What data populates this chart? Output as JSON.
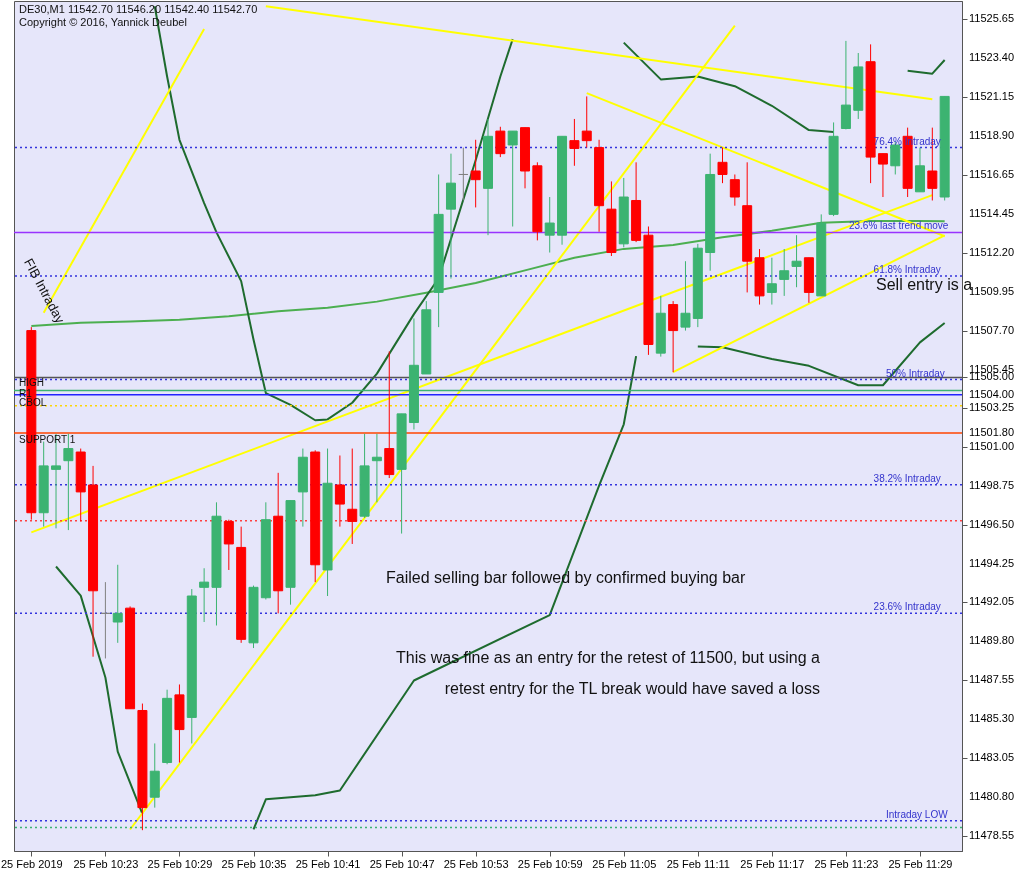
{
  "chart_data": {
    "type": "candlestick",
    "title": "DE30,M1  11542.70 11546.20 11542.40 11542.70",
    "xlim": [
      "2019-02-25T10:16",
      "2019-02-25T11:32"
    ],
    "ylim": [
      11477.7,
      11526.7
    ],
    "xticks": [
      {
        "value": "2019-02-25T10:17",
        "label": "25 Feb 2019"
      },
      {
        "value": "2019-02-25T10:23",
        "label": "25 Feb 10:23"
      },
      {
        "value": "2019-02-25T10:29",
        "label": "25 Feb 10:29"
      },
      {
        "value": "2019-02-25T10:35",
        "label": "25 Feb 10:35"
      },
      {
        "value": "2019-02-25T10:41",
        "label": "25 Feb 10:41"
      },
      {
        "value": "2019-02-25T10:47",
        "label": "25 Feb 10:47"
      },
      {
        "value": "2019-02-25T10:53",
        "label": "25 Feb 10:53"
      },
      {
        "value": "2019-02-25T10:59",
        "label": "25 Feb 10:59"
      },
      {
        "value": "2019-02-25T11:05",
        "label": "25 Feb 11:05"
      },
      {
        "value": "2019-02-25T11:11",
        "label": "25 Feb 11:11"
      },
      {
        "value": "2019-02-25T11:17",
        "label": "25 Feb 11:17"
      },
      {
        "value": "2019-02-25T11:23",
        "label": "25 Feb 11:23"
      },
      {
        "value": "2019-02-25T11:29",
        "label": "25 Feb 11:29"
      }
    ],
    "yticks": [
      {
        "value": 11478.55,
        "label": "11478.55"
      },
      {
        "value": 11480.8,
        "label": "11480.80"
      },
      {
        "value": 11483.05,
        "label": "11483.05"
      },
      {
        "value": 11485.3,
        "label": "11485.30"
      },
      {
        "value": 11487.55,
        "label": "11487.55"
      },
      {
        "value": 11489.8,
        "label": "11489.80"
      },
      {
        "value": 11492.05,
        "label": "11492.05"
      },
      {
        "value": 11494.25,
        "label": "11494.25"
      },
      {
        "value": 11496.5,
        "label": "11496.50"
      },
      {
        "value": 11498.75,
        "label": "11498.75"
      },
      {
        "value": 11501,
        "label": "11501.00"
      },
      {
        "value": 11501.8,
        "label": "11501.80"
      },
      {
        "value": 11503.25,
        "label": "11503.25"
      },
      {
        "value": 11504,
        "label": "11504.00"
      },
      {
        "value": 11505,
        "label": "11505.00"
      },
      {
        "value": 11505.45,
        "label": "11505.45"
      },
      {
        "value": 11507.7,
        "label": "11507.70"
      },
      {
        "value": 11509.95,
        "label": "11509.95"
      },
      {
        "value": 11512.2,
        "label": "11512.20"
      },
      {
        "value": 11514.45,
        "label": "11514.45"
      },
      {
        "value": 11516.65,
        "label": "11516.65"
      },
      {
        "value": 11518.9,
        "label": "11518.90"
      },
      {
        "value": 11521.15,
        "label": "11521.15"
      },
      {
        "value": 11523.4,
        "label": "11523.40"
      },
      {
        "value": 11525.65,
        "label": "11525.65"
      }
    ],
    "series": [
      {
        "x": [
          "2019-02-25T10:17",
          "2019-02-25T10:18",
          "2019-02-25T10:19",
          "2019-02-25T10:20",
          "2019-02-25T10:21",
          "2019-02-25T10:22",
          "2019-02-25T10:23",
          "2019-02-25T10:24",
          "2019-02-25T10:25",
          "2019-02-25T10:26",
          "2019-02-25T10:27",
          "2019-02-25T10:28",
          "2019-02-25T10:29",
          "2019-02-25T10:30",
          "2019-02-25T10:31",
          "2019-02-25T10:32",
          "2019-02-25T10:33",
          "2019-02-25T10:34",
          "2019-02-25T10:35",
          "2019-02-25T10:36",
          "2019-02-25T10:37",
          "2019-02-25T10:38",
          "2019-02-25T10:39",
          "2019-02-25T10:40",
          "2019-02-25T10:41",
          "2019-02-25T10:42",
          "2019-02-25T10:43",
          "2019-02-25T10:44",
          "2019-02-25T10:45",
          "2019-02-25T10:46",
          "2019-02-25T10:47",
          "2019-02-25T10:48",
          "2019-02-25T10:49",
          "2019-02-25T10:50",
          "2019-02-25T10:51",
          "2019-02-25T10:52",
          "2019-02-25T10:53",
          "2019-02-25T10:54",
          "2019-02-25T10:55",
          "2019-02-25T10:56",
          "2019-02-25T10:57",
          "2019-02-25T10:58",
          "2019-02-25T10:59",
          "2019-02-25T11:00",
          "2019-02-25T11:01",
          "2019-02-25T11:02",
          "2019-02-25T11:03",
          "2019-02-25T11:04",
          "2019-02-25T11:05",
          "2019-02-25T11:06",
          "2019-02-25T11:07",
          "2019-02-25T11:08",
          "2019-02-25T11:09",
          "2019-02-25T11:10",
          "2019-02-25T11:11",
          "2019-02-25T11:12",
          "2019-02-25T11:13",
          "2019-02-25T11:14",
          "2019-02-25T11:15",
          "2019-02-25T11:16",
          "2019-02-25T11:17",
          "2019-02-25T11:18",
          "2019-02-25T11:19",
          "2019-02-25T11:20",
          "2019-02-25T11:21",
          "2019-02-25T11:22",
          "2019-02-25T11:23",
          "2019-02-25T11:24",
          "2019-02-25T11:25",
          "2019-02-25T11:26",
          "2019-02-25T11:27",
          "2019-02-25T11:28",
          "2019-02-25T11:29",
          "2019-02-25T11:30",
          "2019-02-25T11:31"
        ],
        "ohlc": [
          [
            11507.7,
            11507.9,
            11496.8,
            11497.2
          ],
          [
            11497.2,
            11501.3,
            11496.4,
            11499.9
          ],
          [
            11499.7,
            11501.75,
            11496.3,
            11499.9
          ],
          [
            11500.2,
            11501.75,
            11496.2,
            11500.9
          ],
          [
            11500.7,
            11500.9,
            11496.7,
            11498.4
          ],
          [
            11498.8,
            11499.9,
            11488.9,
            11492.7
          ],
          [
            11491.4,
            11493.2,
            11488.8,
            11491.4
          ],
          [
            11490.9,
            11494.2,
            11489.7,
            11491.4
          ],
          [
            11491.7,
            11491.8,
            11485.9,
            11485.9
          ],
          [
            11485.8,
            11486.2,
            11478.9,
            11480.2
          ],
          [
            11480.8,
            11483.9,
            11480.2,
            11482.3
          ],
          [
            11482.8,
            11487.0,
            11482.7,
            11486.5
          ],
          [
            11486.7,
            11487.3,
            11482.8,
            11484.7
          ],
          [
            11485.4,
            11492.8,
            11483.9,
            11492.4
          ],
          [
            11492.9,
            11494.0,
            11490.9,
            11493.2
          ],
          [
            11492.9,
            11497.8,
            11490.7,
            11497.0
          ],
          [
            11496.7,
            11496.8,
            11493.9,
            11495.4
          ],
          [
            11495.2,
            11496.4,
            11489.7,
            11489.9
          ],
          [
            11489.7,
            11493.0,
            11489.4,
            11492.9
          ],
          [
            11492.3,
            11497.8,
            11492.2,
            11496.8
          ],
          [
            11497.0,
            11499.5,
            11491.4,
            11492.7
          ],
          [
            11492.9,
            11497.9,
            11491.9,
            11497.9
          ],
          [
            11498.4,
            11500.9,
            11496.4,
            11500.4
          ],
          [
            11500.7,
            11500.8,
            11493.2,
            11494.2
          ],
          [
            11493.9,
            11500.9,
            11492.4,
            11498.9
          ],
          [
            11498.8,
            11500.5,
            11496.4,
            11497.7
          ],
          [
            11497.4,
            11500.9,
            11495.4,
            11496.7
          ],
          [
            11497.0,
            11501.75,
            11496.9,
            11499.9
          ],
          [
            11500.2,
            11501.75,
            11497.8,
            11500.4
          ],
          [
            11500.9,
            11506.5,
            11499.2,
            11499.4
          ],
          [
            11499.7,
            11502.9,
            11496.0,
            11502.9
          ],
          [
            11502.4,
            11508.4,
            11502.0,
            11505.7
          ],
          [
            11505.2,
            11509.4,
            11505.2,
            11508.9
          ],
          [
            11509.9,
            11516.7,
            11507.9,
            11514.4
          ],
          [
            11514.7,
            11517.9,
            11510.7,
            11516.2
          ],
          [
            11516.7,
            11518.25,
            11515.2,
            11516.7
          ],
          [
            11516.9,
            11518.7,
            11514.8,
            11516.4
          ],
          [
            11515.9,
            11519.9,
            11513.2,
            11518.9
          ],
          [
            11519.2,
            11519.45,
            11517.7,
            11517.9
          ],
          [
            11518.4,
            11519.2,
            11513.7,
            11519.2
          ],
          [
            11519.4,
            11519.4,
            11515.9,
            11516.9
          ],
          [
            11517.2,
            11517.4,
            11512.9,
            11513.4
          ],
          [
            11513.2,
            11515.4,
            11512.2,
            11513.9
          ],
          [
            11513.2,
            11518.9,
            11512.65,
            11518.9
          ],
          [
            11518.65,
            11519.9,
            11517.2,
            11518.2
          ],
          [
            11519.2,
            11521.2,
            11518.25,
            11518.65
          ],
          [
            11518.25,
            11518.7,
            11513.4,
            11514.9
          ],
          [
            11514.7,
            11516.3,
            11512.0,
            11512.2
          ],
          [
            11512.7,
            11516.5,
            11512.5,
            11515.4
          ],
          [
            11515.2,
            11517.4,
            11512.8,
            11512.9
          ],
          [
            11513.2,
            11513.7,
            11506.3,
            11506.9
          ],
          [
            11506.4,
            11509.7,
            11506.2,
            11508.7
          ],
          [
            11509.2,
            11509.4,
            11505.3,
            11507.7
          ],
          [
            11507.9,
            11511.7,
            11507.7,
            11508.7
          ],
          [
            11508.4,
            11512.7,
            11507.9,
            11512.45
          ],
          [
            11512.2,
            11517.9,
            11511.15,
            11516.7
          ],
          [
            11517.4,
            11518.25,
            11516.2,
            11516.7
          ],
          [
            11516.4,
            11516.7,
            11514.9,
            11515.4
          ],
          [
            11514.9,
            11517.4,
            11509.9,
            11511.7
          ],
          [
            11511.9,
            11512.4,
            11509.2,
            11509.7
          ],
          [
            11509.9,
            11511.9,
            11509.2,
            11510.4
          ],
          [
            11510.65,
            11512.4,
            11509.7,
            11511.15
          ],
          [
            11511.4,
            11513.2,
            11510.2,
            11511.7
          ],
          [
            11511.9,
            11511.9,
            11509.3,
            11509.9
          ],
          [
            11509.7,
            11514.4,
            11509.7,
            11513.9
          ],
          [
            11514.4,
            11519.7,
            11514.3,
            11518.9
          ],
          [
            11519.35,
            11524.4,
            11519.3,
            11520.7
          ],
          [
            11520.4,
            11523.7,
            11519.9,
            11522.9
          ],
          [
            11523.2,
            11524.2,
            11516.2,
            11517.7
          ],
          [
            11517.9,
            11517.9,
            11515.4,
            11517.3
          ],
          [
            11517.2,
            11518.6,
            11516.7,
            11518.4
          ],
          [
            11518.9,
            11519.4,
            11515.4,
            11515.9
          ],
          [
            11515.7,
            11518.25,
            11515.7,
            11517.2
          ],
          [
            11516.9,
            11519.4,
            11515.2,
            11515.9
          ],
          [
            11515.4,
            11521.2,
            11515.2,
            11521.2
          ]
        ],
        "colors": [
          "#ff0000",
          "#3cb371",
          "#3cb371",
          "#3cb371",
          "#ff0000",
          "#ff0000",
          "#808080",
          "#3cb371",
          "#ff0000",
          "#ff0000",
          "#3cb371",
          "#3cb371",
          "#ff0000",
          "#3cb371",
          "#3cb371",
          "#3cb371",
          "#ff0000",
          "#ff0000",
          "#3cb371",
          "#3cb371",
          "#ff0000",
          "#3cb371",
          "#3cb371",
          "#ff0000",
          "#3cb371",
          "#ff0000",
          "#ff0000",
          "#3cb371",
          "#3cb371",
          "#ff0000",
          "#3cb371",
          "#3cb371",
          "#3cb371",
          "#3cb371",
          "#3cb371",
          "#808080",
          "#ff0000",
          "#3cb371",
          "#ff0000",
          "#3cb371",
          "#ff0000",
          "#ff0000",
          "#3cb371",
          "#3cb371",
          "#ff0000",
          "#ff0000",
          "#ff0000",
          "#ff0000",
          "#3cb371",
          "#ff0000",
          "#ff0000",
          "#3cb371",
          "#ff0000",
          "#3cb371",
          "#3cb371",
          "#3cb371",
          "#ff0000",
          "#ff0000",
          "#ff0000",
          "#ff0000",
          "#3cb371",
          "#3cb371",
          "#3cb371",
          "#ff0000",
          "#3cb371",
          "#3cb371",
          "#3cb371",
          "#3cb371",
          "#ff0000",
          "#ff0000",
          "#3cb371",
          "#ff0000",
          "#3cb371",
          "#ff0000",
          "#3cb371"
        ]
      },
      {
        "type": "line",
        "color": "#4caf50",
        "x": [
          "2019-02-25T10:17",
          "2019-02-25T10:21",
          "2019-02-25T10:25",
          "2019-02-25T10:29",
          "2019-02-25T10:33",
          "2019-02-25T10:37",
          "2019-02-25T10:41",
          "2019-02-25T10:45",
          "2019-02-25T10:49",
          "2019-02-25T10:53",
          "2019-02-25T10:57",
          "2019-02-25T11:01",
          "2019-02-25T11:05",
          "2019-02-25T11:09",
          "2019-02-25T11:13",
          "2019-02-25T11:17",
          "2019-02-25T11:21",
          "2019-02-25T11:25",
          "2019-02-25T11:29",
          "2019-02-25T11:31"
        ],
        "values": [
          11507.97,
          11508.15,
          11508.22,
          11508.33,
          11508.53,
          11508.81,
          11509.01,
          11509.37,
          11509.88,
          11510.44,
          11511.17,
          11511.9,
          11512.41,
          11512.63,
          11513.08,
          11513.45,
          11513.92,
          11514.02,
          11514.02,
          11514.0
        ]
      },
      {
        "type": "line",
        "color": "#1e6b2e",
        "x": [
          "2019-02-25T10:27",
          "2019-02-25T10:28",
          "2019-02-25T10:29",
          "2019-02-25T10:31",
          "2019-02-25T10:32",
          "2019-02-25T10:34",
          "2019-02-25T10:35",
          "2019-02-25T10:36",
          "2019-02-25T10:38",
          "2019-02-25T10:40",
          "2019-02-25T10:41",
          "2019-02-25T10:43",
          "2019-02-25T10:45",
          "2019-02-25T10:48",
          "2019-02-25T10:50",
          "2019-02-25T10:53",
          "2019-02-25T10:55",
          "2019-02-25T10:56",
          "2019-02-25T11:00",
          "2019-02-25T11:05",
          "2019-02-25T11:08",
          "2019-02-25T11:11",
          "2019-02-25T11:14",
          "2019-02-25T11:17",
          "2019-02-25T11:20",
          "2019-02-25T11:22",
          "2019-02-25T11:25",
          "2019-02-25T11:28",
          "2019-02-25T11:30",
          "2019-02-25T11:31"
        ],
        "values": [
          11526.4,
          11522.35,
          11518.7,
          11515.05,
          11513.36,
          11510.55,
          11507.19,
          11504.1,
          11503.42,
          11502.53,
          11502.58,
          11503.54,
          11505.22,
          11508.65,
          11510.72,
          11517.52,
          11522.35,
          11524.5,
          null,
          11524.3,
          11522.18,
          11522.35,
          11521.79,
          11520.66,
          11519.26,
          11519.15,
          null,
          11522.68,
          11522.51,
          11523.3
        ]
      },
      {
        "type": "line",
        "color": "#1e6b2e",
        "x": [
          "2019-02-25T10:19",
          "2019-02-25T10:21",
          "2019-02-25T10:23",
          "2019-02-25T10:24",
          "2019-02-25T10:26",
          "2019-02-25T10:30",
          "2019-02-25T10:35",
          "2019-02-25T10:36",
          "2019-02-25T10:40",
          "2019-02-25T10:42",
          "2019-02-25T10:48",
          "2019-02-25T10:59",
          "2019-02-25T11:03",
          "2019-02-25T11:05",
          "2019-02-25T11:06",
          "2019-02-25T11:08",
          "2019-02-25T11:11",
          "2019-02-25T11:13",
          "2019-02-25T11:17",
          "2019-02-25T11:20",
          "2019-02-25T11:24",
          "2019-02-25T11:26",
          "2019-02-25T11:29",
          "2019-02-25T11:31"
        ],
        "values": [
          11494.1,
          11492.42,
          11487.7,
          11483.43,
          11479.84,
          null,
          11478.94,
          11480.68,
          11480.91,
          11481.19,
          11487.53,
          11491.3,
          11498.76,
          11502.3,
          11506.23,
          null,
          11506.79,
          11506.74,
          11506.06,
          11505.67,
          11504.55,
          11504.55,
          11507.02,
          11508.14
        ]
      },
      {
        "type": "line",
        "color": "#ffff00",
        "x": [
          "2019-02-25T10:18",
          "2019-02-25T10:31"
        ],
        "values": [
          11508.73,
          11525.09
        ]
      },
      {
        "type": "line",
        "color": "#ffff00",
        "x": [
          "2019-02-25T10:25",
          "2019-02-25T11:14"
        ],
        "values": [
          11478.94,
          11525.28
        ]
      },
      {
        "type": "line",
        "color": "#ffff00",
        "x": [
          "2019-02-25T10:17",
          "2019-02-25T11:30"
        ],
        "values": [
          11496.07,
          11515.51
        ]
      },
      {
        "type": "line",
        "color": "#ffff00",
        "x": [
          "2019-02-25T10:36",
          "2019-02-25T11:30"
        ],
        "values": [
          11526.4,
          11521.04
        ]
      },
      {
        "type": "line",
        "color": "#ffff00",
        "x": [
          "2019-02-25T11:02",
          "2019-02-25T11:31"
        ],
        "values": [
          11521.39,
          11513.14
        ]
      },
      {
        "type": "line",
        "color": "#ffff00",
        "x": [
          "2019-02-25T11:09",
          "2019-02-25T11:31"
        ],
        "values": [
          11505.3,
          11513.19
        ]
      }
    ],
    "ref_lines": [
      {
        "axis": "y",
        "value": 11518.25,
        "color": "#3333dd",
        "line_style": "dotted"
      },
      {
        "axis": "y",
        "value": 11513.36,
        "color": "#9933ff",
        "line_style": "solid"
      },
      {
        "axis": "y",
        "value": 11510.84,
        "color": "#3333dd",
        "line_style": "dotted"
      },
      {
        "axis": "y",
        "value": 11505.0,
        "color": "#555555",
        "line_style": "solid"
      },
      {
        "axis": "y",
        "value": 11504.88,
        "color": "#3333dd",
        "line_style": "dotted"
      },
      {
        "axis": "y",
        "value": 11504.25,
        "color": "#3cb371",
        "line_style": "solid"
      },
      {
        "axis": "y",
        "value": 11504.0,
        "color": "#2222ff",
        "line_style": "solid"
      },
      {
        "axis": "y",
        "value": 11503.37,
        "color": "#ffd700",
        "line_style": "dotted"
      },
      {
        "axis": "y",
        "value": 11501.8,
        "color": "#ff4500",
        "line_style": "solid"
      },
      {
        "axis": "y",
        "value": 11498.82,
        "color": "#3333dd",
        "line_style": "dotted"
      },
      {
        "axis": "y",
        "value": 11496.74,
        "color": "#ff4040",
        "line_style": "dotted"
      },
      {
        "axis": "y",
        "value": 11491.41,
        "color": "#3333dd",
        "line_style": "dotted"
      },
      {
        "axis": "y",
        "value": 11479.45,
        "color": "#3333dd",
        "line_style": "dotted"
      },
      {
        "axis": "y",
        "value": 11479.05,
        "color": "#3cb371",
        "line_style": "dotted"
      }
    ],
    "annotations": [
      "Copyright © 2016, Yannick Deubel",
      "FIB Intraday",
      "Failed selling bar followed by confirmed buying bar",
      "This was fine as an entry for the retest of 11500, but using a\nretest entry for the TL break would have saved a loss",
      "Sell entry is a",
      "HIGH",
      "R1",
      "CBOL",
      "SUPPORT 1",
      {
        "text": "76.4%  Intraday",
        "x": "2019-02-25T11:25",
        "y": 11518.25
      },
      {
        "text": "23.6%  last trend move",
        "x": "2019-02-25T11:23",
        "y": 11513.36
      },
      {
        "text": "61.8%  Intraday",
        "x": "2019-02-25T11:25",
        "y": 11510.84
      },
      {
        "text": "50%  Intraday",
        "x": "2019-02-25T11:26",
        "y": 11504.88
      },
      {
        "text": "38.2%  Intraday",
        "x": "2019-02-25T11:25",
        "y": 11498.82
      },
      {
        "text": "23.6%  Intraday",
        "x": "2019-02-25T11:25",
        "y": 11491.41
      },
      {
        "text": "Intraday LOW",
        "x": "2019-02-25T11:26",
        "y": 11479.45
      }
    ]
  }
}
